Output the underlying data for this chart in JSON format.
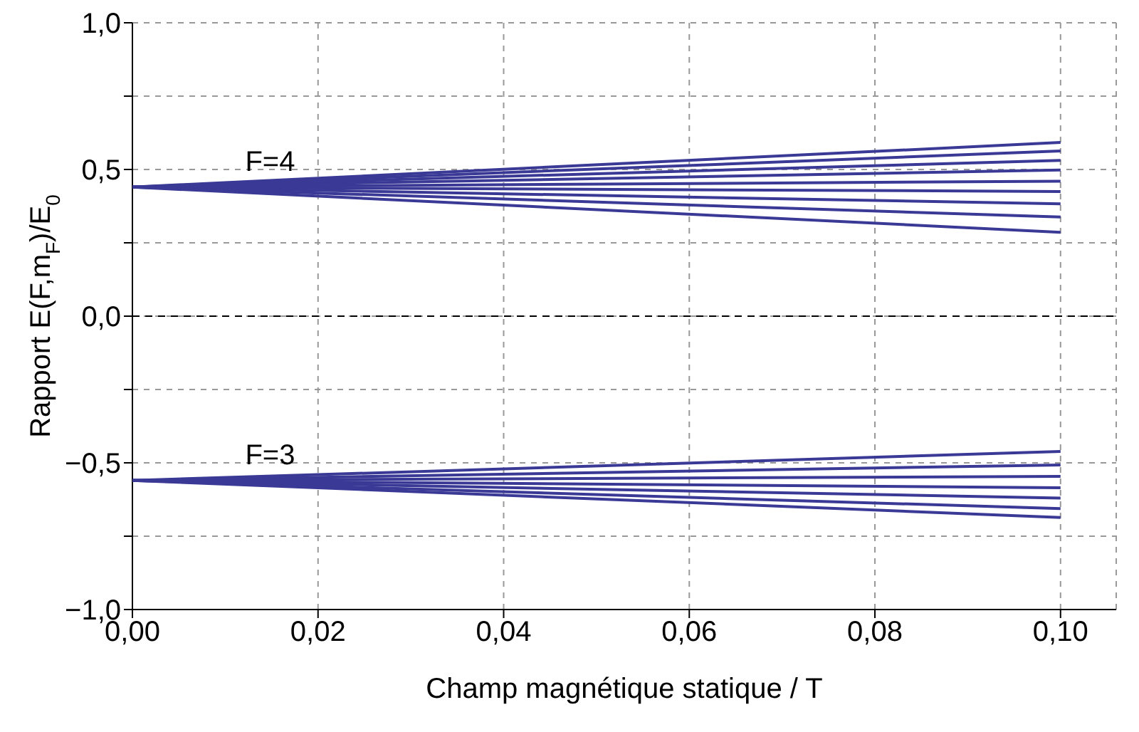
{
  "chart_data": {
    "type": "line",
    "xlabel": "Champ magnétique statique / T",
    "ylabel": "Rapport E(F,m$_{F}$)/E$_{0}$",
    "xlim": [
      0,
      0.106
    ],
    "xticks": [
      {
        "value": 0,
        "label": "0,00"
      },
      {
        "value": 0.02,
        "label": "0,02"
      },
      {
        "value": 0.04,
        "label": "0,04"
      },
      {
        "value": 0.06,
        "label": "0,06"
      },
      {
        "value": 0.08,
        "label": "0,08"
      },
      {
        "value": 0.1,
        "label": "0,10"
      }
    ],
    "ylim": [
      -1,
      1
    ],
    "yticks": [
      {
        "value": -1,
        "label": "−1,0"
      },
      {
        "value": -0.75,
        "label": null
      },
      {
        "value": -0.5,
        "label": "−0,5"
      },
      {
        "value": -0.25,
        "label": null
      },
      {
        "value": 0,
        "label": "0,0"
      },
      {
        "value": 0.25,
        "label": null
      },
      {
        "value": 0.5,
        "label": "0,5"
      },
      {
        "value": 0.75,
        "label": null
      },
      {
        "value": 1,
        "label": "1,0"
      }
    ],
    "grid": true,
    "line_style": "solid",
    "marker": "none",
    "ref_lines": [
      {
        "axis": "y",
        "value": 0,
        "color": "#000000",
        "line_style": "dashed"
      }
    ],
    "annotations": [
      "F=4",
      "F=3"
    ],
    "x": [
      0,
      0.1
    ],
    "series": [
      {
        "color": "#3a3a96",
        "values": [
          0.44,
          0.592
        ]
      },
      {
        "color": "#3a3a96",
        "values": [
          0.44,
          0.563
        ]
      },
      {
        "color": "#3a3a96",
        "values": [
          0.44,
          0.531
        ]
      },
      {
        "color": "#3a3a96",
        "values": [
          0.44,
          0.498
        ]
      },
      {
        "color": "#3a3a96",
        "values": [
          0.44,
          0.46
        ]
      },
      {
        "color": "#3a3a96",
        "values": [
          0.44,
          0.425
        ]
      },
      {
        "color": "#3a3a96",
        "values": [
          0.44,
          0.383
        ]
      },
      {
        "color": "#3a3a96",
        "values": [
          0.44,
          0.338
        ]
      },
      {
        "color": "#3a3a96",
        "values": [
          0.44,
          0.286
        ]
      },
      {
        "color": "#3a3a96",
        "values": [
          -0.56,
          -0.461
        ]
      },
      {
        "color": "#3a3a96",
        "values": [
          -0.56,
          -0.507
        ]
      },
      {
        "color": "#3a3a96",
        "values": [
          -0.56,
          -0.546
        ]
      },
      {
        "color": "#3a3a96",
        "values": [
          -0.56,
          -0.585
        ]
      },
      {
        "color": "#3a3a96",
        "values": [
          -0.56,
          -0.62
        ]
      },
      {
        "color": "#3a3a96",
        "values": [
          -0.56,
          -0.656
        ]
      },
      {
        "color": "#3a3a96",
        "values": [
          -0.56,
          -0.686
        ]
      }
    ]
  }
}
